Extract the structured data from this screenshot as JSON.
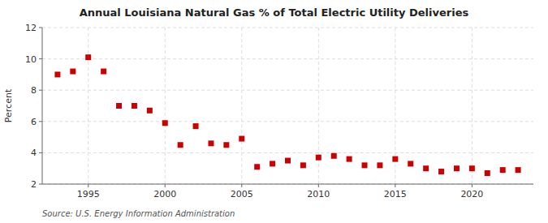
{
  "chart_data": {
    "type": "scatter",
    "title": "Annual Louisiana Natural Gas % of Total Electric Utility Deliveries",
    "ylabel": "Percent",
    "source": "Source: U.S. Energy Information Administration",
    "x": [
      1993,
      1994,
      1995,
      1996,
      1997,
      1998,
      1999,
      2000,
      2001,
      2002,
      2003,
      2004,
      2005,
      2006,
      2007,
      2008,
      2009,
      2010,
      2011,
      2012,
      2013,
      2014,
      2015,
      2016,
      2017,
      2018,
      2019,
      2020,
      2021,
      2022,
      2023
    ],
    "values": [
      9.0,
      9.2,
      10.1,
      9.2,
      7.0,
      7.0,
      6.7,
      5.9,
      4.5,
      5.7,
      4.6,
      4.5,
      4.9,
      3.1,
      3.3,
      3.5,
      3.2,
      3.7,
      3.8,
      3.6,
      3.2,
      3.2,
      3.6,
      3.3,
      3.0,
      2.8,
      3.0,
      3.0,
      2.7,
      2.9,
      2.9
    ],
    "color": "#cc0000",
    "marker": "square",
    "xlim": [
      1992,
      2024
    ],
    "ylim": [
      2,
      12
    ],
    "xticks": [
      1995,
      2000,
      2005,
      2010,
      2015,
      2020
    ],
    "yticks": [
      2,
      4,
      6,
      8,
      10,
      12
    ],
    "grid": true
  }
}
